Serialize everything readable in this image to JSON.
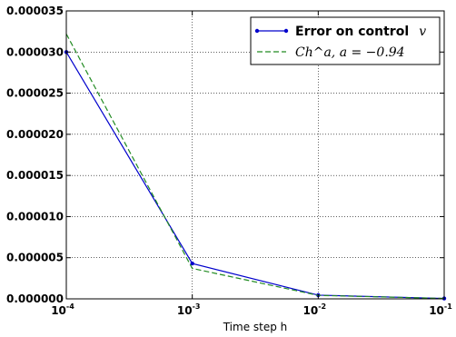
{
  "chart_data": {
    "type": "line",
    "xscale": "log",
    "x_ticks": [
      {
        "value": 0.0001,
        "base": "10",
        "exp": "-4"
      },
      {
        "value": 0.001,
        "base": "10",
        "exp": "-3"
      },
      {
        "value": 0.01,
        "base": "10",
        "exp": "-2"
      },
      {
        "value": 0.1,
        "base": "10",
        "exp": "-1"
      }
    ],
    "y_ticks": [
      {
        "value": 0.0,
        "label": "0.000000"
      },
      {
        "value": 5e-06,
        "label": "0.000005"
      },
      {
        "value": 1e-05,
        "label": "0.000010"
      },
      {
        "value": 1.5e-05,
        "label": "0.000015"
      },
      {
        "value": 2e-05,
        "label": "0.000020"
      },
      {
        "value": 2.5e-05,
        "label": "0.000025"
      },
      {
        "value": 3e-05,
        "label": "0.000030"
      },
      {
        "value": 3.5e-05,
        "label": "0.000035"
      }
    ],
    "xlim": [
      0.0001,
      0.1
    ],
    "ylim": [
      0.0,
      3.5e-05
    ],
    "xlabel": "Time step h",
    "ylabel": "",
    "title": "",
    "grid": true,
    "legend_position": "upper right",
    "series": [
      {
        "name_text": "Error on control",
        "name_math": "v",
        "color": "#0000cc",
        "style": "solid",
        "marker": "dot",
        "x": [
          0.0001,
          0.001,
          0.01,
          0.1
        ],
        "y": [
          3e-05,
          4.3e-06,
          4.5e-07,
          5e-08
        ]
      },
      {
        "name_text": "",
        "name_math": "Ch^a,  a = −0.94",
        "color": "#228b22",
        "style": "dashed",
        "marker": "none",
        "x": [
          0.0001,
          0.001,
          0.01,
          0.1
        ],
        "y": [
          3.22e-05,
          3.7e-06,
          4.2e-07,
          5e-08
        ]
      }
    ]
  }
}
